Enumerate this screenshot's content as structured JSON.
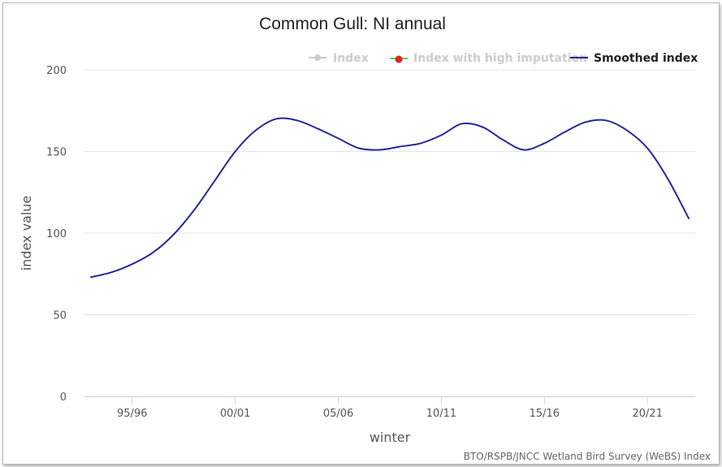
{
  "chart_data": {
    "type": "line",
    "title": "Common Gull: NI annual",
    "xlabel": "winter",
    "ylabel": "index value",
    "ylim": [
      0,
      200
    ],
    "yticks": [
      0,
      50,
      100,
      150,
      200
    ],
    "xticks": [
      "95/96",
      "00/01",
      "05/06",
      "10/11",
      "15/16",
      "20/21"
    ],
    "grid": true,
    "legend_position": "top-right",
    "legend": [
      {
        "label": "Index",
        "color": "#cccccc",
        "visible": false
      },
      {
        "label": "Index with high imputation",
        "color": "#cccccc",
        "visible": false
      },
      {
        "label": "Smoothed index",
        "color": "#27279a",
        "visible": true
      }
    ],
    "series": [
      {
        "name": "Smoothed index",
        "color": "#27279a",
        "x": [
          "93/94",
          "94/95",
          "95/96",
          "96/97",
          "97/98",
          "98/99",
          "99/00",
          "00/01",
          "01/02",
          "02/03",
          "03/04",
          "04/05",
          "05/06",
          "06/07",
          "07/08",
          "08/09",
          "09/10",
          "10/11",
          "11/12",
          "12/13",
          "13/14",
          "14/15",
          "15/16",
          "16/17",
          "17/18",
          "18/19",
          "19/20",
          "20/21",
          "21/22",
          "22/23"
        ],
        "values": [
          73,
          76,
          81,
          88,
          99,
          114,
          132,
          150,
          163,
          170,
          169,
          164,
          158,
          152,
          151,
          153,
          155,
          160,
          167,
          165,
          157,
          151,
          155,
          162,
          168,
          169,
          163,
          152,
          133,
          109
        ]
      }
    ],
    "credits": "BTO/RSPB/JNCC Wetland Bird Survey (WeBS) Index"
  }
}
